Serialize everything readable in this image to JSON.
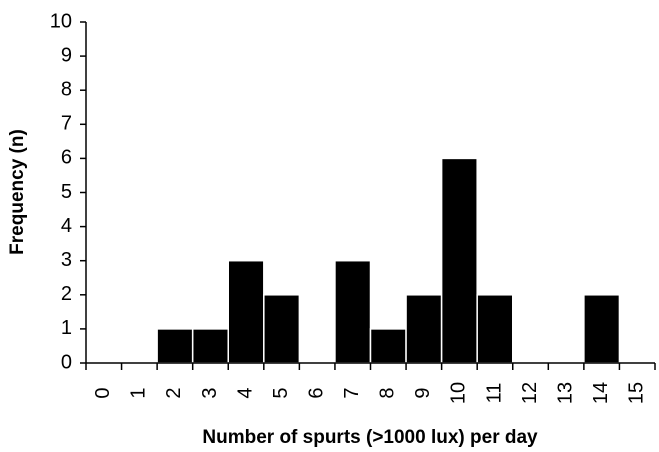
{
  "chart_data": {
    "type": "bar",
    "x_label": "Number of spurts (>1000 lux) per day",
    "y_label": "Frequency (n)",
    "categories": [
      "0",
      "1",
      "2",
      "3",
      "4",
      "5",
      "6",
      "7",
      "8",
      "9",
      "10",
      "11",
      "12",
      "13",
      "14",
      "15"
    ],
    "values": [
      0,
      0,
      1,
      1,
      3,
      2,
      0,
      3,
      1,
      2,
      6,
      2,
      0,
      0,
      2,
      0
    ],
    "color": "#000000",
    "ylim": [
      0,
      10
    ],
    "yticks": [
      0,
      1,
      2,
      3,
      4,
      5,
      6,
      7,
      8,
      9,
      10
    ],
    "grid": false
  }
}
